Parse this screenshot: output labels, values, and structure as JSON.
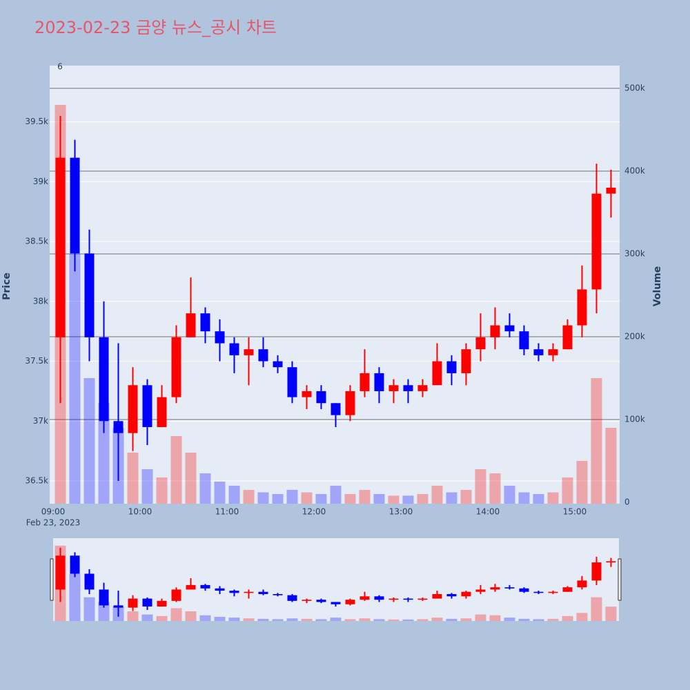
{
  "chart_data": {
    "type": "candlestick",
    "title": "2023-02-23 금양 뉴스_공시 차트",
    "y_label": "Price",
    "y2_label": "Volume",
    "annotation": "6",
    "date_label": "Feb 23, 2023",
    "increasing_color": "#ff0000",
    "decreasing_color": "#0000ff",
    "x": [
      "09:00",
      "09:10",
      "09:20",
      "09:30",
      "09:40",
      "09:50",
      "10:00",
      "10:10",
      "10:20",
      "10:30",
      "10:40",
      "10:50",
      "11:00",
      "11:10",
      "11:20",
      "11:30",
      "11:40",
      "11:50",
      "12:00",
      "12:10",
      "12:20",
      "12:30",
      "12:40",
      "12:50",
      "13:00",
      "13:10",
      "13:20",
      "13:30",
      "13:40",
      "13:50",
      "14:00",
      "14:10",
      "14:20",
      "14:30",
      "14:40",
      "14:50",
      "15:00",
      "15:10",
      "15:20"
    ],
    "open": [
      37700,
      39200,
      38400,
      37700,
      37000,
      36900,
      37300,
      36950,
      37200,
      37700,
      37900,
      37750,
      37650,
      37550,
      37600,
      37500,
      37450,
      37200,
      37250,
      37150,
      37050,
      37250,
      37400,
      37250,
      37300,
      37250,
      37300,
      37500,
      37400,
      37600,
      37700,
      37800,
      37750,
      37600,
      37550,
      37600,
      37800,
      38100,
      38900
    ],
    "high": [
      39550,
      39350,
      38600,
      38000,
      37650,
      37450,
      37350,
      37300,
      37800,
      38200,
      37950,
      37850,
      37700,
      37700,
      37700,
      37550,
      37500,
      37300,
      37300,
      37150,
      37300,
      37600,
      37450,
      37350,
      37350,
      37350,
      37650,
      37550,
      37650,
      37900,
      37950,
      37900,
      37800,
      37650,
      37650,
      37850,
      38300,
      39150,
      39100
    ],
    "low": [
      37150,
      38250,
      37500,
      36900,
      36500,
      36750,
      36800,
      36950,
      37150,
      37700,
      37650,
      37500,
      37400,
      37300,
      37450,
      37400,
      37150,
      37100,
      37100,
      36950,
      37000,
      37200,
      37150,
      37150,
      37150,
      37200,
      37300,
      37300,
      37300,
      37500,
      37600,
      37700,
      37550,
      37500,
      37500,
      37600,
      37700,
      37900,
      38700
    ],
    "close": [
      39200,
      38400,
      37700,
      37000,
      36900,
      37300,
      36950,
      37200,
      37700,
      37900,
      37750,
      37650,
      37550,
      37600,
      37500,
      37450,
      37200,
      37250,
      37150,
      37050,
      37250,
      37400,
      37250,
      37300,
      37250,
      37300,
      37500,
      37400,
      37600,
      37700,
      37800,
      37750,
      37600,
      37550,
      37600,
      37800,
      38100,
      38900,
      38950
    ],
    "volume": [
      480000,
      300000,
      150000,
      120000,
      90000,
      60000,
      40000,
      30000,
      80000,
      60000,
      35000,
      25000,
      20000,
      15000,
      12000,
      10000,
      15000,
      12000,
      10000,
      20000,
      10000,
      15000,
      10000,
      8000,
      8000,
      10000,
      20000,
      12000,
      15000,
      40000,
      35000,
      20000,
      12000,
      10000,
      12000,
      30000,
      50000,
      150000,
      90000
    ],
    "xticks": [
      "09:00",
      "10:00",
      "11:00",
      "12:00",
      "13:00",
      "14:00",
      "15:00"
    ],
    "ylim": [
      36310,
      39970
    ],
    "yticks": [
      {
        "value": 36500,
        "label": "36.5k"
      },
      {
        "value": 37000,
        "label": "37k"
      },
      {
        "value": 37500,
        "label": "37.5k"
      },
      {
        "value": 38000,
        "label": "38k"
      },
      {
        "value": 38500,
        "label": "38.5k"
      },
      {
        "value": 39000,
        "label": "39k"
      },
      {
        "value": 39500,
        "label": "39.5k"
      }
    ],
    "y2lim": [
      -1700,
      527500
    ],
    "y2ticks": [
      0,
      {
        "value": 100000,
        "label": "100k"
      },
      {
        "value": 200000,
        "label": "200k"
      },
      {
        "value": 300000,
        "label": "300k"
      },
      {
        "value": 400000,
        "label": "400k"
      },
      {
        "value": 500000,
        "label": "500k"
      }
    ],
    "grid": true
  }
}
